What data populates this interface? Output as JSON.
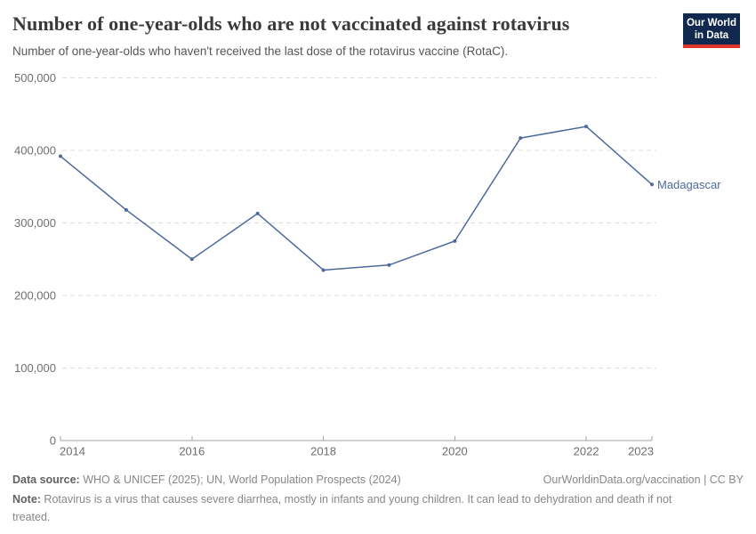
{
  "header": {
    "title": "Number of one-year-olds who are not vaccinated against rotavirus",
    "subtitle": "Number of one-year-olds who haven't received the last dose of the rotavirus vaccine (RotaC).",
    "logo": {
      "line1": "Our World",
      "line2": "in Data"
    }
  },
  "chart_data": {
    "type": "line",
    "title": "Number of one-year-olds who are not vaccinated against rotavirus",
    "x": [
      2014,
      2015,
      2016,
      2017,
      2018,
      2019,
      2020,
      2021,
      2022,
      2023
    ],
    "series": [
      {
        "name": "Madagascar",
        "color": "#4c6a9c",
        "values": [
          392000,
          318000,
          250000,
          313000,
          235000,
          242000,
          275000,
          417000,
          433000,
          353000
        ]
      }
    ],
    "ylim": [
      0,
      500000
    ],
    "yticks": [
      0,
      100000,
      200000,
      300000,
      400000,
      500000
    ],
    "ytick_labels": [
      "0",
      "100,000",
      "200,000",
      "300,000",
      "400,000",
      "500,000"
    ],
    "xticks": [
      2014,
      2016,
      2018,
      2020,
      2022,
      2023
    ],
    "xlabel": "",
    "ylabel": "",
    "grid": "horizontal-dashed",
    "legend_position": "end-of-line-label"
  },
  "colors": {
    "line": "#4c6a9c",
    "grid": "#dcdcdc",
    "axis": "#a3a3a3",
    "tick_text": "#6e6e6e",
    "logo_bg": "#12294f",
    "logo_accent": "#dc352a"
  },
  "footer": {
    "datasource_label": "Data source:",
    "datasource_text": " WHO & UNICEF (2025); UN, World Population Prospects (2024)",
    "rights": "OurWorldinData.org/vaccination | CC BY",
    "note_label": "Note:",
    "note_text": " Rotavirus is a virus that causes severe diarrhea, mostly in infants and young children. It can lead to dehydration and death if not treated."
  }
}
